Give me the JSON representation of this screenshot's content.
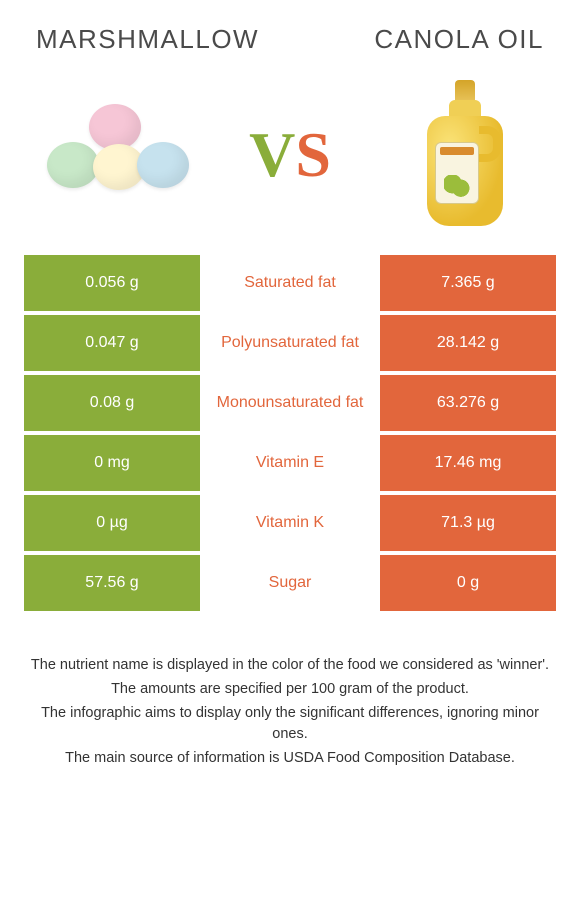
{
  "header": {
    "left_title": "MARSHMALLOW",
    "right_title": "CANOLA OIL"
  },
  "vs": {
    "v": "V",
    "s": "S"
  },
  "colors": {
    "left": "#8aad3a",
    "right": "#e2663c",
    "text": "#333333",
    "bg": "#ffffff"
  },
  "table": {
    "rows": [
      {
        "left": "0.056 g",
        "label": "Saturated fat",
        "right": "7.365 g",
        "winner": "right"
      },
      {
        "left": "0.047 g",
        "label": "Polyunsaturated fat",
        "right": "28.142 g",
        "winner": "right"
      },
      {
        "left": "0.08 g",
        "label": "Monounsaturated fat",
        "right": "63.276 g",
        "winner": "right"
      },
      {
        "left": "0 mg",
        "label": "Vitamin E",
        "right": "17.46 mg",
        "winner": "right"
      },
      {
        "left": "0 µg",
        "label": "Vitamin K",
        "right": "71.3 µg",
        "winner": "right"
      },
      {
        "left": "57.56 g",
        "label": "Sugar",
        "right": "0 g",
        "winner": "right"
      }
    ]
  },
  "notes": [
    "The nutrient name is displayed in the color of the food we considered as 'winner'.",
    "The amounts are specified per 100 gram of the product.",
    "The infographic aims to display only the significant differences, ignoring minor ones.",
    "The main source of information is USDA Food Composition Database."
  ]
}
